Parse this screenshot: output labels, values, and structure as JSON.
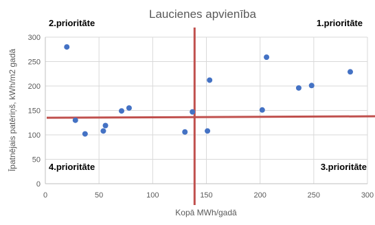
{
  "chart_data": {
    "type": "scatter",
    "title": "Laucienes apvienība",
    "xlabel": "Kopā MWh/gadā",
    "ylabel": "Īpatnējais patēriņš, kWh/m2 gadā",
    "xlim": [
      0,
      300
    ],
    "ylim": [
      0,
      300
    ],
    "xticks": [
      0,
      50,
      100,
      150,
      200,
      250,
      300
    ],
    "yticks": [
      0,
      50,
      100,
      150,
      200,
      250,
      300
    ],
    "x_tick_labels": [
      "0",
      "50",
      "100",
      "150",
      "200",
      "250",
      "300"
    ],
    "y_tick_labels": [
      "0",
      "50",
      "100",
      "150",
      "200",
      "250",
      "300"
    ],
    "grid": true,
    "point_color": "#4472c4",
    "line_color": "#c0504d",
    "grid_color": "#d9d9d9",
    "points": [
      {
        "x": 20,
        "y": 280
      },
      {
        "x": 28,
        "y": 130
      },
      {
        "x": 37,
        "y": 102
      },
      {
        "x": 54,
        "y": 108
      },
      {
        "x": 56,
        "y": 119
      },
      {
        "x": 71,
        "y": 149
      },
      {
        "x": 78,
        "y": 155
      },
      {
        "x": 130,
        "y": 106
      },
      {
        "x": 137,
        "y": 147
      },
      {
        "x": 151,
        "y": 108
      },
      {
        "x": 153,
        "y": 212
      },
      {
        "x": 202,
        "y": 151
      },
      {
        "x": 206,
        "y": 259
      },
      {
        "x": 236,
        "y": 196
      },
      {
        "x": 248,
        "y": 201
      },
      {
        "x": 284,
        "y": 229
      }
    ],
    "reference_lines": {
      "vertical_x": 139,
      "horizontal_y_start": 135,
      "horizontal_y_end": 138
    },
    "quadrant_labels": {
      "top_left": "2.prioritāte",
      "top_right": "1.prioritāte",
      "bottom_left": "4.prioritāte",
      "bottom_right": "3.prioritāte"
    }
  }
}
